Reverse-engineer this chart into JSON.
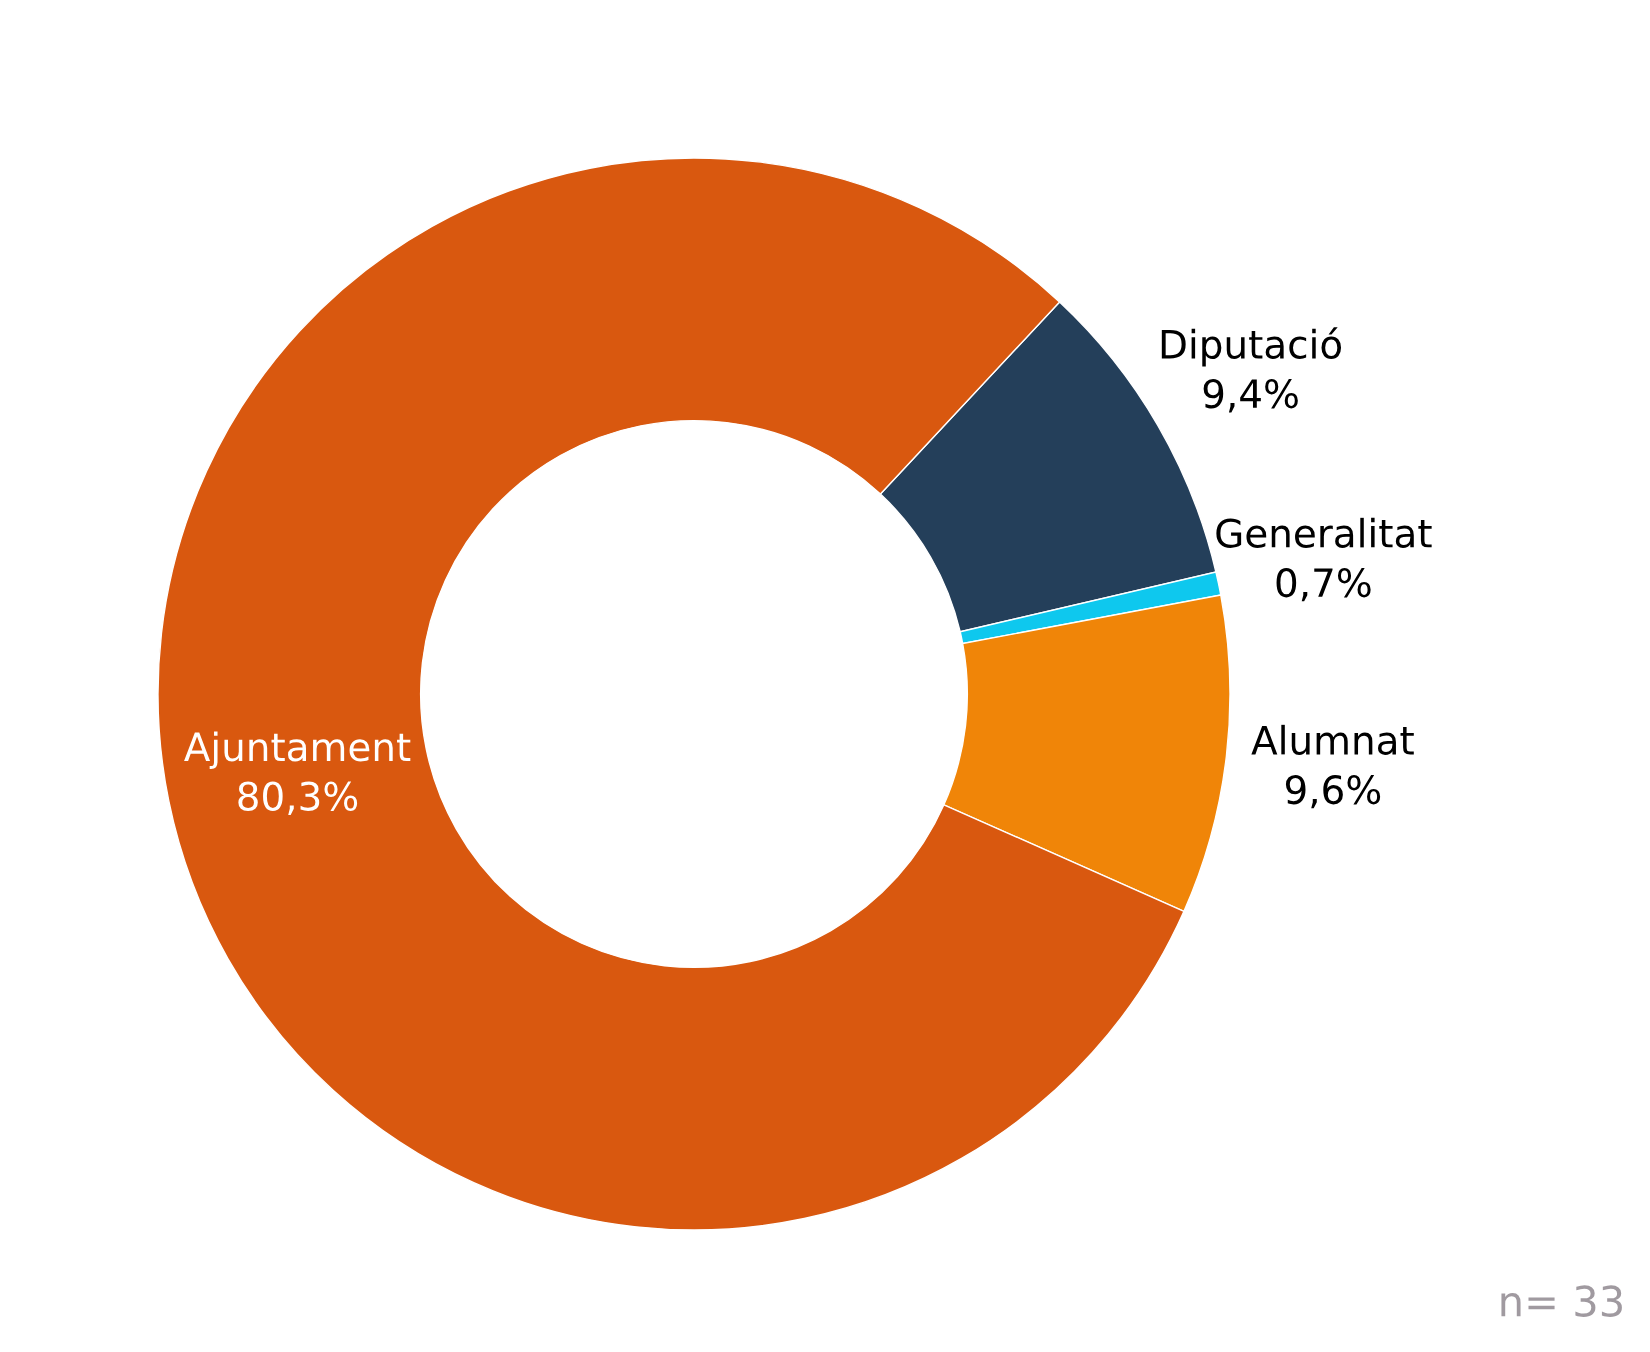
{
  "chart_data": {
    "type": "donut",
    "categories": [
      "Diputació",
      "Generalitat",
      "Alumnat",
      "Ajuntament"
    ],
    "values": [
      9.4,
      0.7,
      9.6,
      80.3
    ],
    "colors": [
      "#243f5a",
      "#0ec8ee",
      "#f08508",
      "#d9580f"
    ],
    "value_labels": [
      "9,4%",
      "0,7%",
      "9,6%",
      "80,3%"
    ],
    "annotations": [
      "n= 33"
    ],
    "legend": false
  }
}
